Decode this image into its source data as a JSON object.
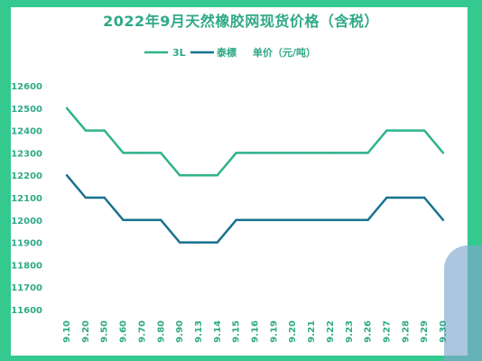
{
  "chart_data": {
    "type": "line",
    "title": "2022年9月天然橡胶网现货价格（含税）",
    "xlabel": "",
    "ylabel": "",
    "legend_position": "top",
    "unit_note": "单价（元/吨）",
    "categories": [
      "9.10",
      "9.20",
      "9.50",
      "9.60",
      "9.70",
      "9.80",
      "9.90",
      "9.13",
      "9.14",
      "9.15",
      "9.16",
      "9.19",
      "9.20",
      "9.21",
      "9.22",
      "9.23",
      "9.26",
      "9.27",
      "9.28",
      "9.29",
      "9.30"
    ],
    "ylim": [
      11600,
      12600
    ],
    "yticks": [
      "12600",
      "12500",
      "12400",
      "12300",
      "12200",
      "12100",
      "12000",
      "11900",
      "11800",
      "11700",
      "11600"
    ],
    "grid": false,
    "series": [
      {
        "name": "3L",
        "color": "#2fb38c",
        "values": [
          12500,
          12400,
          12400,
          12300,
          12300,
          12300,
          12200,
          12200,
          12200,
          12300,
          12300,
          12300,
          12300,
          12300,
          12300,
          12300,
          12300,
          12400,
          12400,
          12400,
          12300
        ]
      },
      {
        "name": "泰標",
        "color": "#17728f",
        "values": [
          12200,
          12100,
          12100,
          12000,
          12000,
          12000,
          11900,
          11900,
          11900,
          12000,
          12000,
          12000,
          12000,
          12000,
          12000,
          12000,
          12000,
          12100,
          12100,
          12100,
          12000
        ]
      }
    ]
  }
}
